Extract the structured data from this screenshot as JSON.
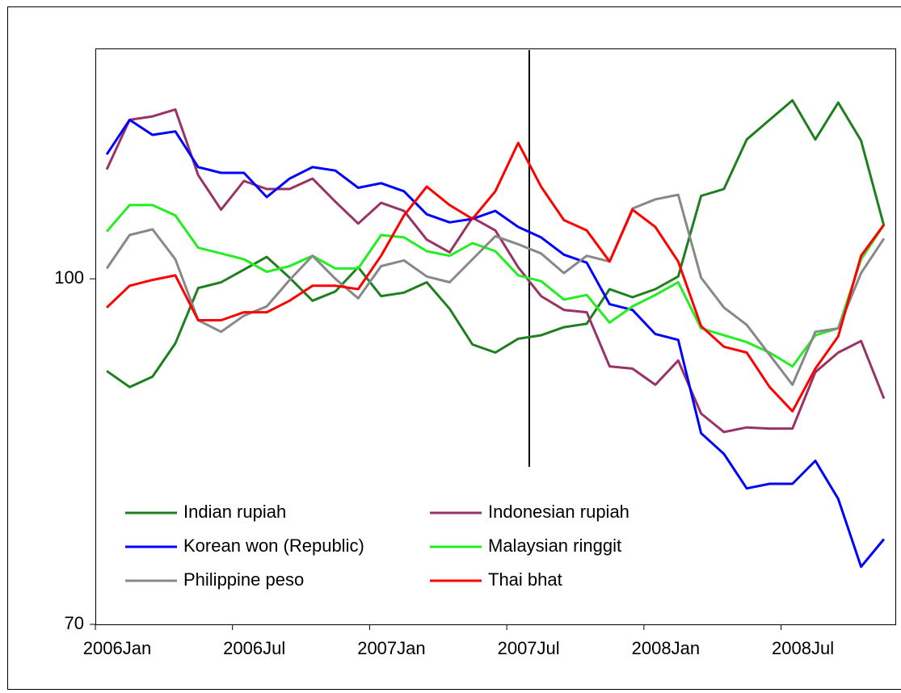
{
  "chart_data": {
    "type": "line",
    "categories": [
      "2006Jan",
      null,
      null,
      null,
      null,
      null,
      "2006Jul",
      null,
      null,
      null,
      null,
      null,
      "2007Jan",
      null,
      null,
      null,
      null,
      null,
      "2007Jul",
      null,
      null,
      null,
      null,
      null,
      "2008Jan",
      null,
      null,
      null,
      null,
      null,
      "2008Jul",
      null,
      null,
      null,
      null
    ],
    "ylim": [
      70,
      120
    ],
    "yticks": [
      70,
      100
    ],
    "grid": false,
    "legend": "bottom-left",
    "series": [
      {
        "name": "Indian rupiah",
        "color": "#1f7f1f",
        "values": [
          92.0,
          90.6,
          91.5,
          94.4,
          99.2,
          99.7,
          100.8,
          101.9,
          100.1,
          98.1,
          98.9,
          101.0,
          98.5,
          98.8,
          99.7,
          97.4,
          94.3,
          93.6,
          94.8,
          95.1,
          95.8,
          96.1,
          99.1,
          98.4,
          99.1,
          100.2,
          107.2,
          107.8,
          112.1,
          113.8,
          115.5,
          112.1,
          115.3,
          112.0,
          104.6
        ]
      },
      {
        "name": "Indonesian rupiah",
        "color": "#993366",
        "values": [
          109.5,
          113.8,
          114.1,
          114.7,
          109.0,
          106.0,
          108.5,
          107.8,
          107.8,
          108.7,
          106.7,
          104.8,
          106.6,
          105.9,
          103.4,
          102.3,
          105.3,
          104.2,
          101.0,
          98.5,
          97.3,
          97.1,
          92.4,
          92.2,
          90.8,
          92.9,
          88.3,
          86.7,
          87.1,
          87.0,
          87.0,
          91.9,
          93.6,
          94.6,
          89.6
        ]
      },
      {
        "name": "Korean won (Republic)",
        "color": "#0000ff",
        "values": [
          110.8,
          113.8,
          112.5,
          112.8,
          109.7,
          109.2,
          109.2,
          107.1,
          108.7,
          109.7,
          109.4,
          107.9,
          108.3,
          107.6,
          105.6,
          104.9,
          105.2,
          105.9,
          104.5,
          103.6,
          102.1,
          101.4,
          97.8,
          97.3,
          95.2,
          94.7,
          86.6,
          84.8,
          81.8,
          82.2,
          82.2,
          84.2,
          80.9,
          75.0,
          77.4
        ]
      },
      {
        "name": "Malaysian ringgit",
        "color": "#22ee22",
        "values": [
          104.1,
          106.4,
          106.4,
          105.5,
          102.7,
          102.2,
          101.7,
          100.6,
          101.1,
          102.0,
          100.9,
          100.9,
          103.8,
          103.6,
          102.4,
          102.0,
          103.1,
          102.4,
          100.3,
          99.8,
          98.2,
          98.6,
          96.2,
          97.6,
          98.6,
          99.7,
          95.7,
          95.1,
          94.5,
          93.6,
          92.4,
          95.1,
          95.7,
          101.7,
          104.7
        ]
      },
      {
        "name": "Philippine peso",
        "color": "#888888",
        "values": [
          100.9,
          103.8,
          104.3,
          101.7,
          96.4,
          95.4,
          96.8,
          97.6,
          99.9,
          102.0,
          100.0,
          98.3,
          101.1,
          101.6,
          100.2,
          99.7,
          101.7,
          103.7,
          103.0,
          102.2,
          100.5,
          102.0,
          101.5,
          106.1,
          106.9,
          107.3,
          100.1,
          97.5,
          96.0,
          93.4,
          90.8,
          95.4,
          95.7,
          100.5,
          103.5
        ]
      },
      {
        "name": "Thai bhat",
        "color": "#ff0000",
        "values": [
          97.5,
          99.4,
          99.9,
          100.3,
          96.4,
          96.4,
          97.1,
          97.1,
          98.1,
          99.4,
          99.4,
          99.1,
          102.0,
          105.5,
          108.0,
          106.4,
          105.2,
          107.6,
          111.8,
          108.0,
          105.1,
          104.2,
          101.5,
          106.0,
          104.5,
          101.5,
          95.9,
          94.1,
          93.6,
          90.6,
          88.5,
          92.2,
          95.0,
          102.0,
          104.7
        ]
      }
    ]
  }
}
